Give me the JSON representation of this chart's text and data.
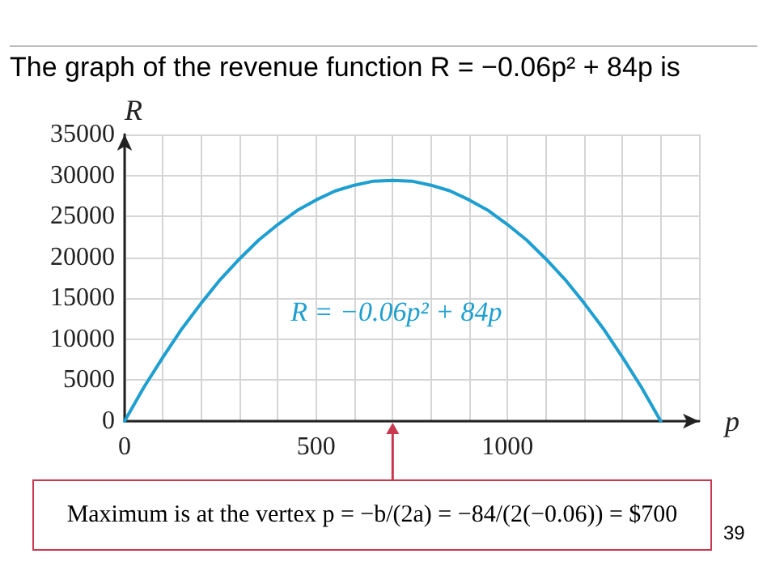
{
  "chart_data": {
    "type": "line",
    "title": "The graph of the revenue function R = −0.06p² + 84p is",
    "xlabel": "p",
    "ylabel": "R",
    "x": [
      0,
      50,
      100,
      150,
      200,
      250,
      300,
      350,
      400,
      450,
      500,
      550,
      600,
      650,
      700,
      750,
      800,
      850,
      900,
      950,
      1000,
      1050,
      1100,
      1150,
      1200,
      1250,
      1300,
      1350,
      1400
    ],
    "series": [
      {
        "name": "R = −0.06p² + 84p",
        "color": "#1e9fd0",
        "values": [
          0,
          4100,
          7800,
          11300,
          14400,
          17300,
          19800,
          22100,
          24000,
          25700,
          27000,
          28100,
          28800,
          29300,
          29400,
          29300,
          28800,
          28100,
          27000,
          25700,
          24000,
          22100,
          19800,
          17300,
          14400,
          11300,
          7800,
          4100,
          0
        ]
      }
    ],
    "xlim": [
      0,
      1500
    ],
    "xticks": [
      0,
      {
        "value": 100,
        "label": null
      },
      {
        "value": 200,
        "label": null
      },
      {
        "value": 300,
        "label": null
      },
      {
        "value": 400,
        "label": null
      },
      500,
      {
        "value": 600,
        "label": null
      },
      {
        "value": 700,
        "label": null
      },
      {
        "value": 800,
        "label": null
      },
      {
        "value": 900,
        "label": null
      },
      1000,
      {
        "value": 1100,
        "label": null
      },
      {
        "value": 1200,
        "label": null
      },
      {
        "value": 1300,
        "label": null
      },
      {
        "value": 1400,
        "label": null
      },
      {
        "value": 1500,
        "label": null
      }
    ],
    "ylim": [
      0,
      35000
    ],
    "yticks": [
      0,
      5000,
      10000,
      15000,
      20000,
      25000,
      30000,
      35000
    ],
    "grid": true,
    "marker": "none",
    "line_style": "solid",
    "legend": false,
    "annotations": [
      "Maximum is at the vertex p = −b/(2a) = −84/(2(−0.06)) = $700",
      "39"
    ]
  }
}
